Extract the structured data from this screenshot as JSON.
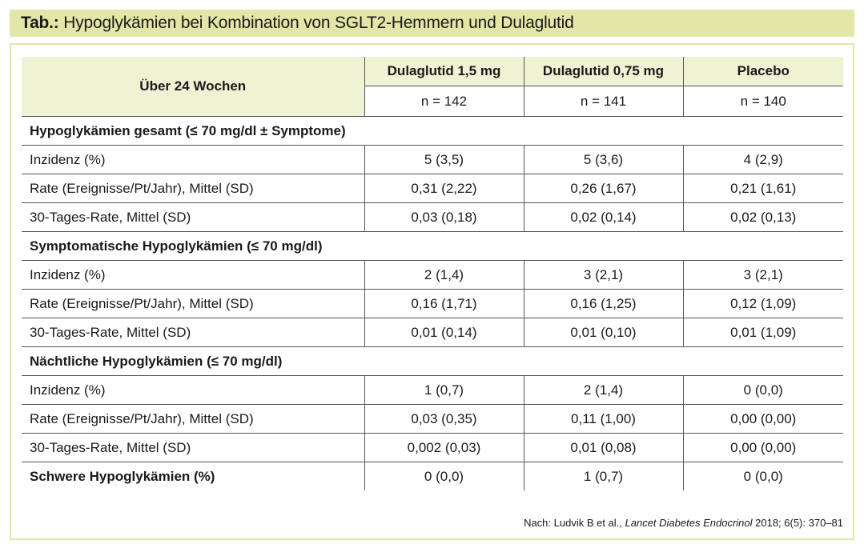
{
  "title": {
    "prefix": "Tab.:",
    "text": "Hypoglykämien bei Kombination von SGLT2-Hemmern und Dulaglutid"
  },
  "header": {
    "corner": "Über 24 Wochen",
    "columns": [
      {
        "name": "Dulaglutid 1,5 mg",
        "n": "n = 142"
      },
      {
        "name": "Dulaglutid 0,75 mg",
        "n": "n = 141"
      },
      {
        "name": "Placebo",
        "n": "n = 140"
      }
    ]
  },
  "sections": [
    {
      "title": "Hypoglykämien gesamt (≤ 70 mg/dl ± Symptome)",
      "rows": [
        {
          "label": "Inzidenz (%)",
          "values": [
            "5 (3,5)",
            "5 (3,6)",
            "4 (2,9)"
          ]
        },
        {
          "label": "Rate (Ereignisse/Pt/Jahr), Mittel (SD)",
          "values": [
            "0,31 (2,22)",
            "0,26 (1,67)",
            "0,21 (1,61)"
          ]
        },
        {
          "label": "30-Tages-Rate, Mittel (SD)",
          "values": [
            "0,03 (0,18)",
            "0,02 (0,14)",
            "0,02 (0,13)"
          ]
        }
      ]
    },
    {
      "title": "Symptomatische Hypoglykämien (≤ 70 mg/dl)",
      "rows": [
        {
          "label": "Inzidenz (%)",
          "values": [
            "2 (1,4)",
            "3 (2,1)",
            "3 (2,1)"
          ]
        },
        {
          "label": "Rate (Ereignisse/Pt/Jahr), Mittel (SD)",
          "values": [
            "0,16 (1,71)",
            "0,16 (1,25)",
            "0,12 (1,09)"
          ]
        },
        {
          "label": "30-Tages-Rate, Mittel (SD)",
          "values": [
            "0,01 (0,14)",
            "0,01 (0,10)",
            "0,01 (1,09)"
          ]
        }
      ]
    },
    {
      "title": "Nächtliche Hypoglykämien (≤ 70 mg/dl)",
      "rows": [
        {
          "label": "Inzidenz (%)",
          "values": [
            "1 (0,7)",
            "2 (1,4)",
            "0 (0,0)"
          ]
        },
        {
          "label": "Rate (Ereignisse/Pt/Jahr), Mittel (SD)",
          "values": [
            "0,03 (0,35)",
            "0,11 (1,00)",
            "0,00 (0,00)"
          ]
        },
        {
          "label": "30-Tages-Rate, Mittel (SD)",
          "values": [
            "0,002 (0,03)",
            "0,01 (0,08)",
            "0,00 (0,00)"
          ]
        }
      ]
    }
  ],
  "final_row": {
    "label": "Schwere Hypoglykämien (%)",
    "values": [
      "0 (0,0)",
      "1 (0,7)",
      "0 (0,0)"
    ]
  },
  "source": {
    "prefix": "Nach: Ludvik B et al., ",
    "journal": "Lancet Diabetes Endocrinol",
    "suffix": " 2018; 6(5): 370–81"
  },
  "colors": {
    "title_bg": "#e2e7a7",
    "header_bg": "#f0f2d4",
    "rule": "#555555"
  }
}
